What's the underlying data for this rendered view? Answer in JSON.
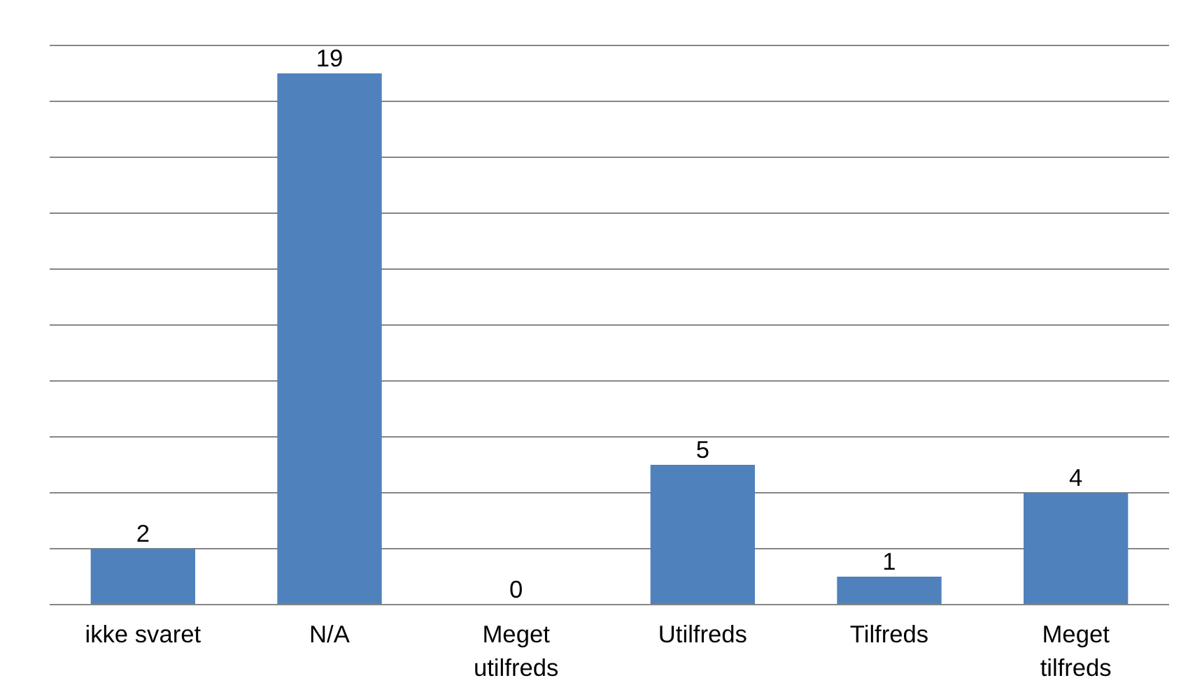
{
  "chart_data": {
    "type": "bar",
    "categories": [
      "ikke svaret",
      "N/A",
      "Meget utilfreds",
      "Utilfreds",
      "Tilfreds",
      "Meget tilfreds"
    ],
    "values": [
      2,
      19,
      0,
      5,
      1,
      4
    ],
    "color": "#4f81bd",
    "data_labels": true,
    "ylim": [
      0,
      20
    ],
    "yticks": [
      {
        "value": 0,
        "label": null
      },
      {
        "value": 2,
        "label": null
      },
      {
        "value": 4,
        "label": null
      },
      {
        "value": 6,
        "label": null
      },
      {
        "value": 8,
        "label": null
      },
      {
        "value": 10,
        "label": null
      },
      {
        "value": 12,
        "label": null
      },
      {
        "value": 14,
        "label": null
      },
      {
        "value": 16,
        "label": null
      },
      {
        "value": 18,
        "label": null
      },
      {
        "value": 20,
        "label": null
      }
    ],
    "grid": "y",
    "tick_labels": "x"
  }
}
